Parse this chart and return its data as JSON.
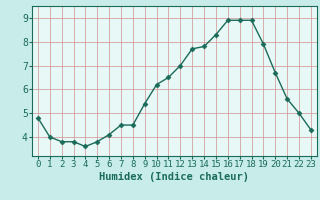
{
  "x": [
    0,
    1,
    2,
    3,
    4,
    5,
    6,
    7,
    8,
    9,
    10,
    11,
    12,
    13,
    14,
    15,
    16,
    17,
    18,
    19,
    20,
    21,
    22,
    23
  ],
  "y": [
    4.8,
    4.0,
    3.8,
    3.8,
    3.6,
    3.8,
    4.1,
    4.5,
    4.5,
    5.4,
    6.2,
    6.5,
    7.0,
    7.7,
    7.8,
    8.3,
    8.9,
    8.9,
    8.9,
    7.9,
    6.7,
    5.6,
    5.0,
    4.3
  ],
  "line_color": "#1a6b5a",
  "marker": "D",
  "marker_size": 2.5,
  "bg_color": "#c8ecea",
  "plot_bg_color": "#e8f8f6",
  "grid_color": "#d09090",
  "axis_color": "#1a6b5a",
  "tick_color": "#1a6b5a",
  "xlabel": "Humidex (Indice chaleur)",
  "ylabel": "",
  "title": "",
  "ylim": [
    3.2,
    9.5
  ],
  "xlim": [
    -0.5,
    23.5
  ],
  "yticks": [
    4,
    5,
    6,
    7,
    8,
    9
  ],
  "xticks": [
    0,
    1,
    2,
    3,
    4,
    5,
    6,
    7,
    8,
    9,
    10,
    11,
    12,
    13,
    14,
    15,
    16,
    17,
    18,
    19,
    20,
    21,
    22,
    23
  ],
  "fontsize": 6.5,
  "xlabel_fontsize": 7.5
}
